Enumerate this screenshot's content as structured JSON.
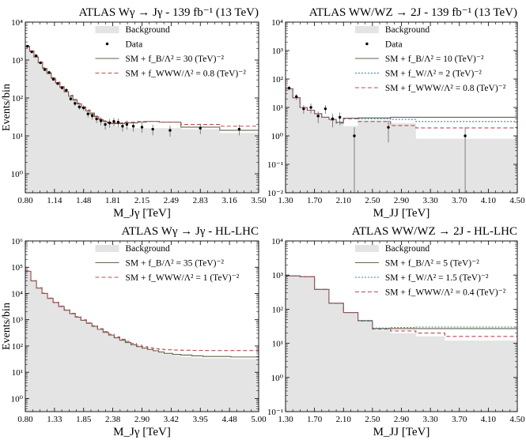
{
  "colors": {
    "background_fill": "#e4e4e4",
    "sm_fb": "#60664a",
    "sm_fw": "#2a7f9f",
    "sm_fwww": "#b94a56",
    "data": "#000000"
  },
  "chart_data": [
    {
      "type": "histogram",
      "title": "ATLAS Wγ → Jγ - 139 fb⁻¹ (13 TeV)",
      "xlabel": "M_Jγ [TeV]",
      "ylabel": "Events/bin",
      "yscale": "log",
      "xlim": [
        0.8,
        3.5
      ],
      "ylim_log10": [
        -0.5,
        4
      ],
      "xticks": [
        "0.80",
        "1.14",
        "1.48",
        "1.81",
        "2.15",
        "2.49",
        "2.83",
        "3.16",
        "3.50"
      ],
      "yticks": [
        "10⁰",
        "10¹",
        "10²",
        "10³",
        "10⁴"
      ],
      "edges": [
        0.8,
        0.85,
        0.9,
        0.95,
        1.0,
        1.05,
        1.1,
        1.15,
        1.2,
        1.25,
        1.3,
        1.35,
        1.4,
        1.45,
        1.5,
        1.55,
        1.6,
        1.65,
        1.7,
        1.75,
        1.8,
        1.85,
        1.9,
        1.95,
        2.0,
        2.1,
        2.2,
        2.35,
        2.6,
        3.05,
        3.5
      ],
      "background": [
        2300,
        1700,
        1200,
        850,
        600,
        440,
        330,
        250,
        190,
        145,
        112,
        88,
        70,
        56,
        46,
        38,
        32,
        27,
        23,
        21,
        19,
        18,
        17,
        17,
        16,
        16,
        16,
        16,
        15,
        12
      ],
      "series": [
        {
          "name": "SM + f_B/Λ² = 30 (TeV)⁻²",
          "key": "sm_fb",
          "values": [
            2300,
            1700,
            1200,
            850,
            600,
            440,
            330,
            250,
            190,
            145,
            112,
            88,
            70,
            56,
            46,
            38,
            32,
            27,
            24,
            22,
            21,
            21,
            21,
            22,
            22,
            23,
            24,
            23,
            17,
            14
          ]
        },
        {
          "name": "SM + f_WWW/Λ² = 0.8 (TeV)⁻²",
          "key": "sm_fwww",
          "values": [
            2350,
            1750,
            1250,
            880,
            620,
            460,
            345,
            262,
            200,
            152,
            118,
            92,
            73,
            58,
            48,
            40,
            33,
            28,
            25,
            23,
            22,
            22,
            22,
            23,
            23,
            24,
            24,
            23,
            20,
            18
          ]
        }
      ],
      "data": {
        "x": [
          0.825,
          0.875,
          0.925,
          0.975,
          1.025,
          1.075,
          1.125,
          1.175,
          1.225,
          1.275,
          1.325,
          1.375,
          1.425,
          1.475,
          1.525,
          1.575,
          1.625,
          1.675,
          1.725,
          1.775,
          1.825,
          1.875,
          1.925,
          1.975,
          2.05,
          2.15,
          2.275,
          2.475,
          2.825,
          3.275
        ],
        "y": [
          2300,
          1650,
          1300,
          850,
          560,
          470,
          310,
          240,
          185,
          160,
          95,
          72,
          58,
          55,
          38,
          34,
          28,
          25,
          20,
          22,
          24,
          23,
          18,
          20,
          18,
          17,
          15,
          14,
          16,
          15
        ]
      },
      "legend": [
        "Background",
        "Data",
        "SM + f_B/Λ² = 30 (TeV)⁻²",
        "SM + f_WWW/Λ² = 0.8 (TeV)⁻²"
      ],
      "legend_placement": "top-right"
    },
    {
      "type": "histogram",
      "title": "ATLAS WW/WZ → 2J - 139 fb⁻¹ (13 TeV)",
      "xlabel": "M_JJ [TeV]",
      "ylabel": "",
      "yscale": "log",
      "xlim": [
        1.3,
        4.5
      ],
      "ylim_log10": [
        -2,
        4
      ],
      "xticks": [
        "1.30",
        "1.70",
        "2.10",
        "2.50",
        "2.90",
        "3.30",
        "3.70",
        "4.10",
        "4.50"
      ],
      "yticks": [
        "10⁻²",
        "10⁻¹",
        "10⁰",
        "10¹",
        "10²",
        "10³",
        "10⁴"
      ],
      "edges": [
        1.3,
        1.4,
        1.5,
        1.6,
        1.7,
        1.8,
        1.9,
        2.0,
        2.1,
        2.3,
        2.75,
        3.1,
        4.5
      ],
      "background": [
        45,
        22,
        10,
        8,
        6,
        4.5,
        3.5,
        2.6,
        2.2,
        3.5,
        2.8,
        0.8
      ],
      "series": [
        {
          "name": "SM + f_B/Λ² = 10 (TeV)⁻²",
          "key": "sm_fb",
          "values": [
            45,
            22,
            10,
            8,
            6,
            4.5,
            3.8,
            3.0,
            4.2,
            4.3,
            4.5,
            4.5
          ]
        },
        {
          "name": "SM + f_W/Λ² = 2 (TeV)⁻²",
          "key": "sm_fw",
          "values": [
            45,
            22,
            10,
            8,
            6,
            4.5,
            3.8,
            3.0,
            4.2,
            4.0,
            3.8,
            3.2
          ]
        },
        {
          "name": "SM + f_WWW/Λ² = 0.8 (TeV)⁻²",
          "key": "sm_fwww",
          "values": [
            45,
            22,
            10,
            8,
            6,
            4.5,
            3.6,
            2.8,
            4.0,
            3.2,
            2.3,
            1.9
          ]
        }
      ],
      "data": {
        "x": [
          1.35,
          1.45,
          1.55,
          1.65,
          1.75,
          1.85,
          1.95,
          2.05,
          2.25,
          2.72,
          3.78
        ],
        "y": [
          48,
          24,
          9,
          10,
          5,
          9,
          4,
          4.5,
          1,
          2,
          1
        ]
      },
      "legend": [
        "Background",
        "Data",
        "SM + f_B/Λ² = 10 (TeV)⁻²",
        "SM + f_W/Λ² = 2 (TeV)⁻²",
        "SM + f_WWW/Λ² = 0.8 (TeV)⁻²"
      ],
      "legend_placement": "top-right"
    },
    {
      "type": "histogram",
      "title": "ATLAS Wγ → Jγ - HL-LHC",
      "xlabel": "M_Jγ [TeV]",
      "ylabel": "Events/bin",
      "yscale": "log",
      "xlim": [
        0.8,
        5.0
      ],
      "ylim_log10": [
        -0.5,
        6
      ],
      "xticks": [
        "0.80",
        "1.33",
        "1.85",
        "2.38",
        "2.90",
        "3.42",
        "3.95",
        "4.48",
        "5.00"
      ],
      "yticks": [
        "10⁰",
        "10¹",
        "10²",
        "10³",
        "10⁴",
        "10⁵",
        "10⁶"
      ],
      "edges": [
        0.8,
        0.9,
        1.0,
        1.1,
        1.2,
        1.3,
        1.4,
        1.5,
        1.6,
        1.7,
        1.8,
        1.9,
        2.0,
        2.1,
        2.2,
        2.3,
        2.4,
        2.5,
        2.6,
        2.7,
        2.8,
        2.9,
        3.0,
        3.1,
        3.2,
        3.3,
        3.45,
        3.6,
        3.8,
        4.0,
        4.5,
        5.0
      ],
      "background": [
        70000,
        30000,
        16000,
        10000,
        6500,
        4500,
        3200,
        2300,
        1700,
        1250,
        950,
        730,
        560,
        430,
        330,
        260,
        205,
        165,
        135,
        110,
        92,
        80,
        70,
        62,
        55,
        48,
        43,
        39,
        36,
        34,
        32
      ],
      "series": [
        {
          "name": "SM + f_B/Λ² = 35 (TeV)⁻²",
          "key": "sm_fb",
          "values": [
            70000,
            30000,
            16000,
            10000,
            6500,
            4500,
            3200,
            2300,
            1700,
            1250,
            950,
            730,
            560,
            430,
            330,
            260,
            205,
            165,
            135,
            112,
            95,
            83,
            74,
            66,
            59,
            52,
            48,
            45,
            42,
            40,
            38
          ]
        },
        {
          "name": "SM + f_WWW/Λ² = 1 (TeV)⁻²",
          "key": "sm_fwww",
          "values": [
            72000,
            31000,
            16500,
            10300,
            6700,
            4650,
            3300,
            2380,
            1760,
            1300,
            990,
            760,
            590,
            455,
            350,
            280,
            222,
            180,
            150,
            125,
            106,
            94,
            85,
            79,
            75,
            72,
            70,
            69,
            68,
            67,
            67
          ]
        }
      ],
      "legend": [
        "Background",
        "SM + f_B/Λ² = 35 (TeV)⁻²",
        "SM + f_WWW/Λ² = 1 (TeV)⁻²"
      ],
      "legend_placement": "top-right"
    },
    {
      "type": "histogram",
      "title": "ATLAS WW/WZ → 2J - HL-LHC",
      "xlabel": "M_JJ [TeV]",
      "ylabel": "",
      "yscale": "log",
      "xlim": [
        1.3,
        4.5
      ],
      "ylim_log10": [
        -1,
        4
      ],
      "xticks": [
        "1.30",
        "1.70",
        "2.10",
        "2.50",
        "2.90",
        "3.30",
        "3.70",
        "4.10",
        "4.50"
      ],
      "yticks": [
        "10⁻¹",
        "10⁰",
        "10¹",
        "10²",
        "10³",
        "10⁴"
      ],
      "edges": [
        1.3,
        1.5,
        1.7,
        1.9,
        2.1,
        2.3,
        2.5,
        2.75,
        3.1,
        3.5,
        4.5
      ],
      "background": [
        950,
        900,
        380,
        150,
        80,
        45,
        24,
        20,
        16,
        12
      ],
      "series": [
        {
          "name": "SM + f_B/Λ² = 5 (TeV)⁻²",
          "key": "sm_fb",
          "values": [
            950,
            900,
            380,
            150,
            80,
            46,
            27,
            27,
            27,
            27
          ]
        },
        {
          "name": "SM + f_W/Λ² = 1.5 (TeV)⁻²",
          "key": "sm_fw",
          "values": [
            950,
            900,
            380,
            150,
            80,
            47,
            28,
            29,
            30,
            30
          ]
        },
        {
          "name": "SM + f_WWW/Λ² = 0.4 (TeV)⁻²",
          "key": "sm_fwww",
          "values": [
            950,
            900,
            380,
            150,
            80,
            45,
            26,
            23,
            20,
            16
          ]
        }
      ],
      "legend": [
        "Background",
        "SM + f_B/Λ² = 5 (TeV)⁻²",
        "SM + f_W/Λ² = 1.5 (TeV)⁻²",
        "SM + f_WWW/Λ² = 0.4 (TeV)⁻²"
      ],
      "legend_placement": "top-right"
    }
  ]
}
